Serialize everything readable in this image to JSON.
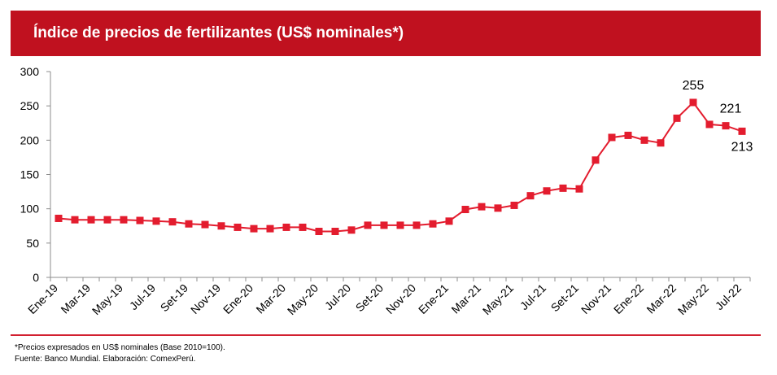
{
  "header": {
    "title": "Índice de precios de fertilizantes (US$ nominales*)"
  },
  "colors": {
    "accent": "#c0111f",
    "series": "#e31c2e",
    "axis": "#8c8c8c"
  },
  "chart_data": {
    "type": "line",
    "title": "Índice de precios de fertilizantes (US$ nominales*)",
    "xlabel": "",
    "ylabel": "",
    "ylim": [
      0,
      300
    ],
    "yticks": [
      0,
      50,
      100,
      150,
      200,
      250,
      300
    ],
    "grid": false,
    "x": [
      "Ene-19",
      "Feb-19",
      "Mar-19",
      "Abr-19",
      "May-19",
      "Jun-19",
      "Jul-19",
      "Ago-19",
      "Set-19",
      "Oct-19",
      "Nov-19",
      "Dic-19",
      "Ene-20",
      "Feb-20",
      "Mar-20",
      "Abr-20",
      "May-20",
      "Jun-20",
      "Jul-20",
      "Ago-20",
      "Set-20",
      "Oct-20",
      "Nov-20",
      "Dic-20",
      "Ene-21",
      "Feb-21",
      "Mar-21",
      "Abr-21",
      "May-21",
      "Jun-21",
      "Jul-21",
      "Ago-21",
      "Set-21",
      "Oct-21",
      "Nov-21",
      "Dic-21",
      "Ene-22",
      "Feb-22",
      "Mar-22",
      "Abr-22",
      "May-22",
      "Jun-22",
      "Jul-22"
    ],
    "tick_labels": [
      "Ene-19",
      "Mar-19",
      "May-19",
      "Jul-19",
      "Set-19",
      "Nov-19",
      "Ene-20",
      "Mar-20",
      "May-20",
      "Jul-20",
      "Set-20",
      "Nov-20",
      "Ene-21",
      "Mar-21",
      "May-21",
      "Jul-21",
      "Set-21",
      "Nov-21",
      "Ene-22",
      "Mar-22",
      "May-22",
      "Jul-22"
    ],
    "series": [
      {
        "name": "Índice de precios de fertilizantes",
        "values": [
          86,
          84,
          84,
          84,
          84,
          83,
          82,
          81,
          78,
          77,
          75,
          73,
          71,
          71,
          73,
          73,
          67,
          67,
          69,
          76,
          76,
          76,
          76,
          78,
          82,
          99,
          103,
          101,
          105,
          119,
          126,
          130,
          129,
          171,
          204,
          207,
          200,
          196,
          232,
          255,
          223,
          221,
          213
        ]
      }
    ],
    "annotations": [
      {
        "index": 39,
        "text": "255"
      },
      {
        "index": 41,
        "text": "221"
      },
      {
        "index": 42,
        "text": "213"
      }
    ]
  },
  "footnotes": {
    "note": "*Precios expresados en US$ nominales (Base 2010=100).",
    "source": "Fuente: Banco Mundial. Elaboración: ComexPerú."
  }
}
